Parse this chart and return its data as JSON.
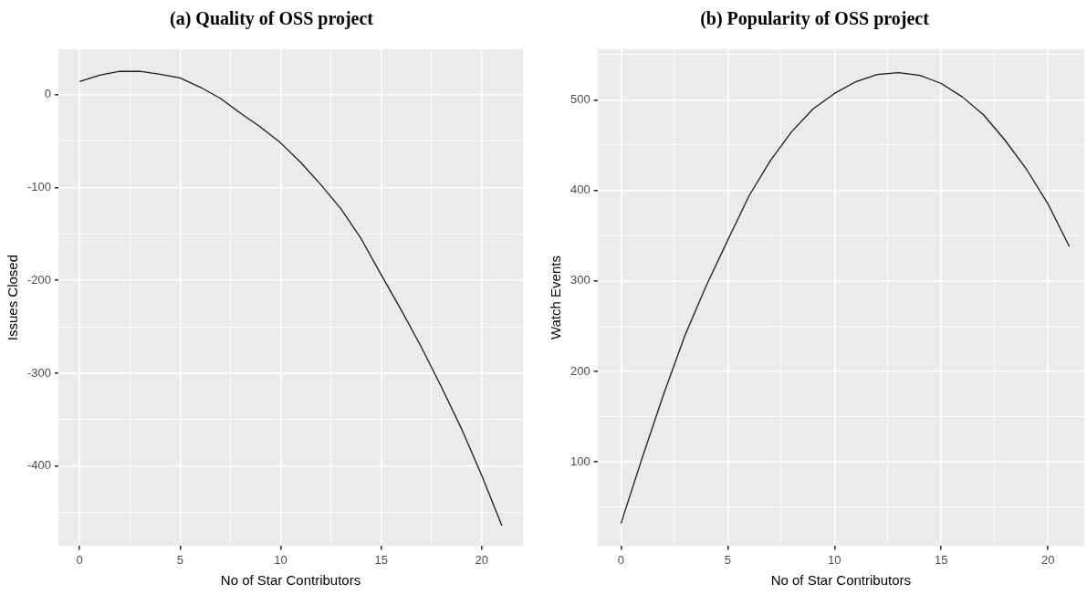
{
  "chart_data": [
    {
      "type": "line",
      "title": "(a) Quality of OSS project",
      "xlabel": "No of Star Contributors",
      "ylabel": "Issues Closed",
      "color": "#1a1a1a",
      "marker": "none",
      "grid": true,
      "x": [
        0,
        1,
        2,
        3,
        4,
        5,
        6,
        7,
        8,
        9,
        10,
        11,
        12,
        13,
        14,
        15,
        16,
        17,
        18,
        19,
        20,
        21
      ],
      "values": [
        14,
        21,
        25,
        25,
        22,
        18,
        8,
        -4,
        -20,
        -35,
        -52,
        -73,
        -97,
        -123,
        -155,
        -194,
        -232,
        -272,
        -315,
        -360,
        -410,
        -464
      ],
      "xlim": [
        -1.05,
        22.05
      ],
      "xticks": [
        0,
        {
          "value": 2.5,
          "label": null
        },
        5,
        {
          "value": 7.5,
          "label": null
        },
        10,
        {
          "value": 12.5,
          "label": null
        },
        15,
        {
          "value": 17.5,
          "label": null
        },
        20
      ],
      "ylim": [
        -486,
        49
      ],
      "yticks": [
        {
          "value": -450,
          "label": null
        },
        -400,
        {
          "value": -350,
          "label": null
        },
        -300,
        {
          "value": -250,
          "label": null
        },
        -200,
        {
          "value": -150,
          "label": null
        },
        -100,
        {
          "value": -50,
          "label": null
        },
        0
      ]
    },
    {
      "type": "line",
      "title": "(b) Popularity of OSS project",
      "xlabel": "No of Star Contributors",
      "ylabel": "Watch Events",
      "color": "#1a1a1a",
      "marker": "none",
      "grid": true,
      "x": [
        0,
        1,
        2,
        3,
        4,
        5,
        6,
        7,
        8,
        9,
        10,
        11,
        12,
        13,
        14,
        15,
        16,
        17,
        18,
        19,
        20,
        21
      ],
      "values": [
        32,
        105,
        175,
        240,
        295,
        345,
        394,
        433,
        465,
        490,
        507,
        520,
        528,
        530,
        527,
        518,
        503,
        483,
        455,
        423,
        385,
        338
      ],
      "xlim": [
        -1.1,
        21.7
      ],
      "xticks": [
        0,
        {
          "value": 2.5,
          "label": null
        },
        5,
        {
          "value": 7.5,
          "label": null
        },
        10,
        {
          "value": 12.5,
          "label": null
        },
        15,
        {
          "value": 17.5,
          "label": null
        },
        20
      ],
      "ylim": [
        7,
        556
      ],
      "yticks": [
        {
          "value": 50,
          "label": null
        },
        100,
        {
          "value": 150,
          "label": null
        },
        200,
        {
          "value": 250,
          "label": null
        },
        300,
        {
          "value": 350,
          "label": null
        },
        400,
        {
          "value": 450,
          "label": null
        },
        500,
        {
          "value": 550,
          "label": null
        }
      ]
    }
  ]
}
